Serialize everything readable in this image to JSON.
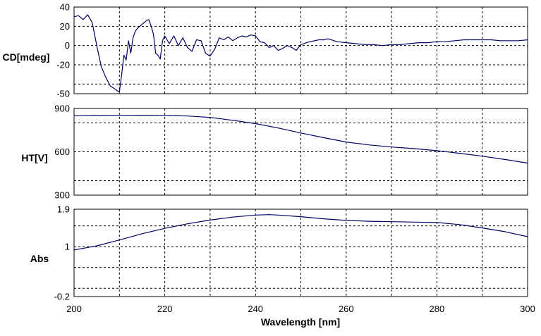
{
  "chart_data": {
    "type": "line",
    "xlabel": "Wavelength [nm]",
    "xlim": [
      200,
      300
    ],
    "x_ticks": [
      200,
      220,
      240,
      260,
      280,
      300
    ],
    "x_tick_labels": [
      "200",
      "220",
      "240",
      "260",
      "280",
      "300"
    ],
    "x_grid": [
      210,
      220,
      230,
      240,
      250,
      260,
      270,
      280,
      290
    ],
    "grid": true,
    "line_color": "#000066",
    "panels": [
      {
        "ylabel": "CD[mdeg]",
        "ylim": [
          -50,
          40
        ],
        "y_tick_labels": [
          {
            "value": 40,
            "label": "40"
          },
          {
            "value": 20,
            "label": "20"
          },
          {
            "value": 0,
            "label": "0"
          },
          {
            "value": -20,
            "label": "-20"
          },
          {
            "value": -50,
            "label": "-50"
          }
        ],
        "y_grid": [
          20,
          0,
          -20,
          -40
        ],
        "series": [
          {
            "x": [
              200,
              201,
              202,
              203,
              204,
              205,
              206,
              207,
              208,
              209,
              209.5,
              210,
              210.5,
              211,
              211.5,
              212,
              212.5,
              213,
              213.5,
              214,
              215,
              216,
              216.5,
              217,
              217.5,
              218,
              218.5,
              219,
              219.5,
              220,
              221,
              222,
              223,
              224,
              225,
              226,
              227,
              228,
              229,
              230,
              231,
              232,
              233,
              234,
              235,
              236,
              237,
              238,
              239,
              240,
              241,
              242,
              243,
              244,
              245,
              246,
              247,
              248,
              249,
              250,
              252,
              254,
              255,
              256,
              258,
              260,
              262,
              264,
              266,
              268,
              270,
              272,
              274,
              276,
              278,
              280,
              282,
              284,
              286,
              288,
              290,
              292,
              294,
              296,
              298,
              300
            ],
            "y": [
              30,
              31,
              27,
              32,
              24,
              0,
              -22,
              -33,
              -42,
              -45,
              -47,
              -48,
              -30,
              -10,
              -15,
              5,
              -8,
              8,
              15,
              18,
              22,
              26,
              27,
              20,
              12,
              -8,
              -10,
              -14,
              5,
              10,
              2,
              10,
              0,
              8,
              -2,
              -6,
              6,
              5,
              -8,
              -11,
              -4,
              8,
              6,
              9,
              5,
              8,
              10,
              9,
              11,
              10,
              4,
              3,
              -2,
              0,
              -5,
              -3,
              0,
              -2,
              -5,
              1,
              4,
              6,
              6,
              7,
              4,
              3,
              2,
              1,
              1,
              0,
              1,
              1,
              2,
              3,
              3,
              4,
              4,
              5,
              6,
              6,
              6,
              6,
              5,
              5,
              5,
              6
            ]
          }
        ]
      },
      {
        "ylabel": "HT[V]",
        "ylim": [
          300,
          900
        ],
        "y_tick_labels": [
          {
            "value": 900,
            "label": "900"
          },
          {
            "value": 600,
            "label": "600"
          },
          {
            "value": 300,
            "label": "300"
          }
        ],
        "y_grid": [
          800,
          600,
          400
        ],
        "series": [
          {
            "x": [
              200,
              205,
              210,
              215,
              220,
              225,
              230,
              235,
              240,
              245,
              250,
              255,
              260,
              265,
              270,
              275,
              280,
              285,
              290,
              295,
              300
            ],
            "y": [
              850,
              851,
              852,
              853,
              852,
              848,
              838,
              818,
              795,
              765,
              730,
              698,
              668,
              648,
              633,
              622,
              608,
              590,
              570,
              547,
              522
            ]
          }
        ]
      },
      {
        "ylabel": "Abs",
        "ylim": [
          -0.2,
          1.9
        ],
        "y_tick_labels": [
          {
            "value": 1.9,
            "label": "1.9"
          },
          {
            "value": 1,
            "label": "1"
          },
          {
            "value": -0.2,
            "label": "-0.2"
          }
        ],
        "y_grid": [
          1.5,
          1,
          0.5,
          0
        ],
        "series": [
          {
            "x": [
              200,
              205,
              210,
              215,
              220,
              225,
              230,
              235,
              240,
              243,
              245,
              250,
              255,
              260,
              265,
              270,
              275,
              280,
              285,
              290,
              295,
              300
            ],
            "y": [
              0.92,
              1.02,
              1.16,
              1.31,
              1.44,
              1.55,
              1.64,
              1.71,
              1.76,
              1.77,
              1.76,
              1.72,
              1.67,
              1.63,
              1.61,
              1.6,
              1.59,
              1.58,
              1.53,
              1.45,
              1.36,
              1.24
            ]
          }
        ]
      }
    ]
  }
}
